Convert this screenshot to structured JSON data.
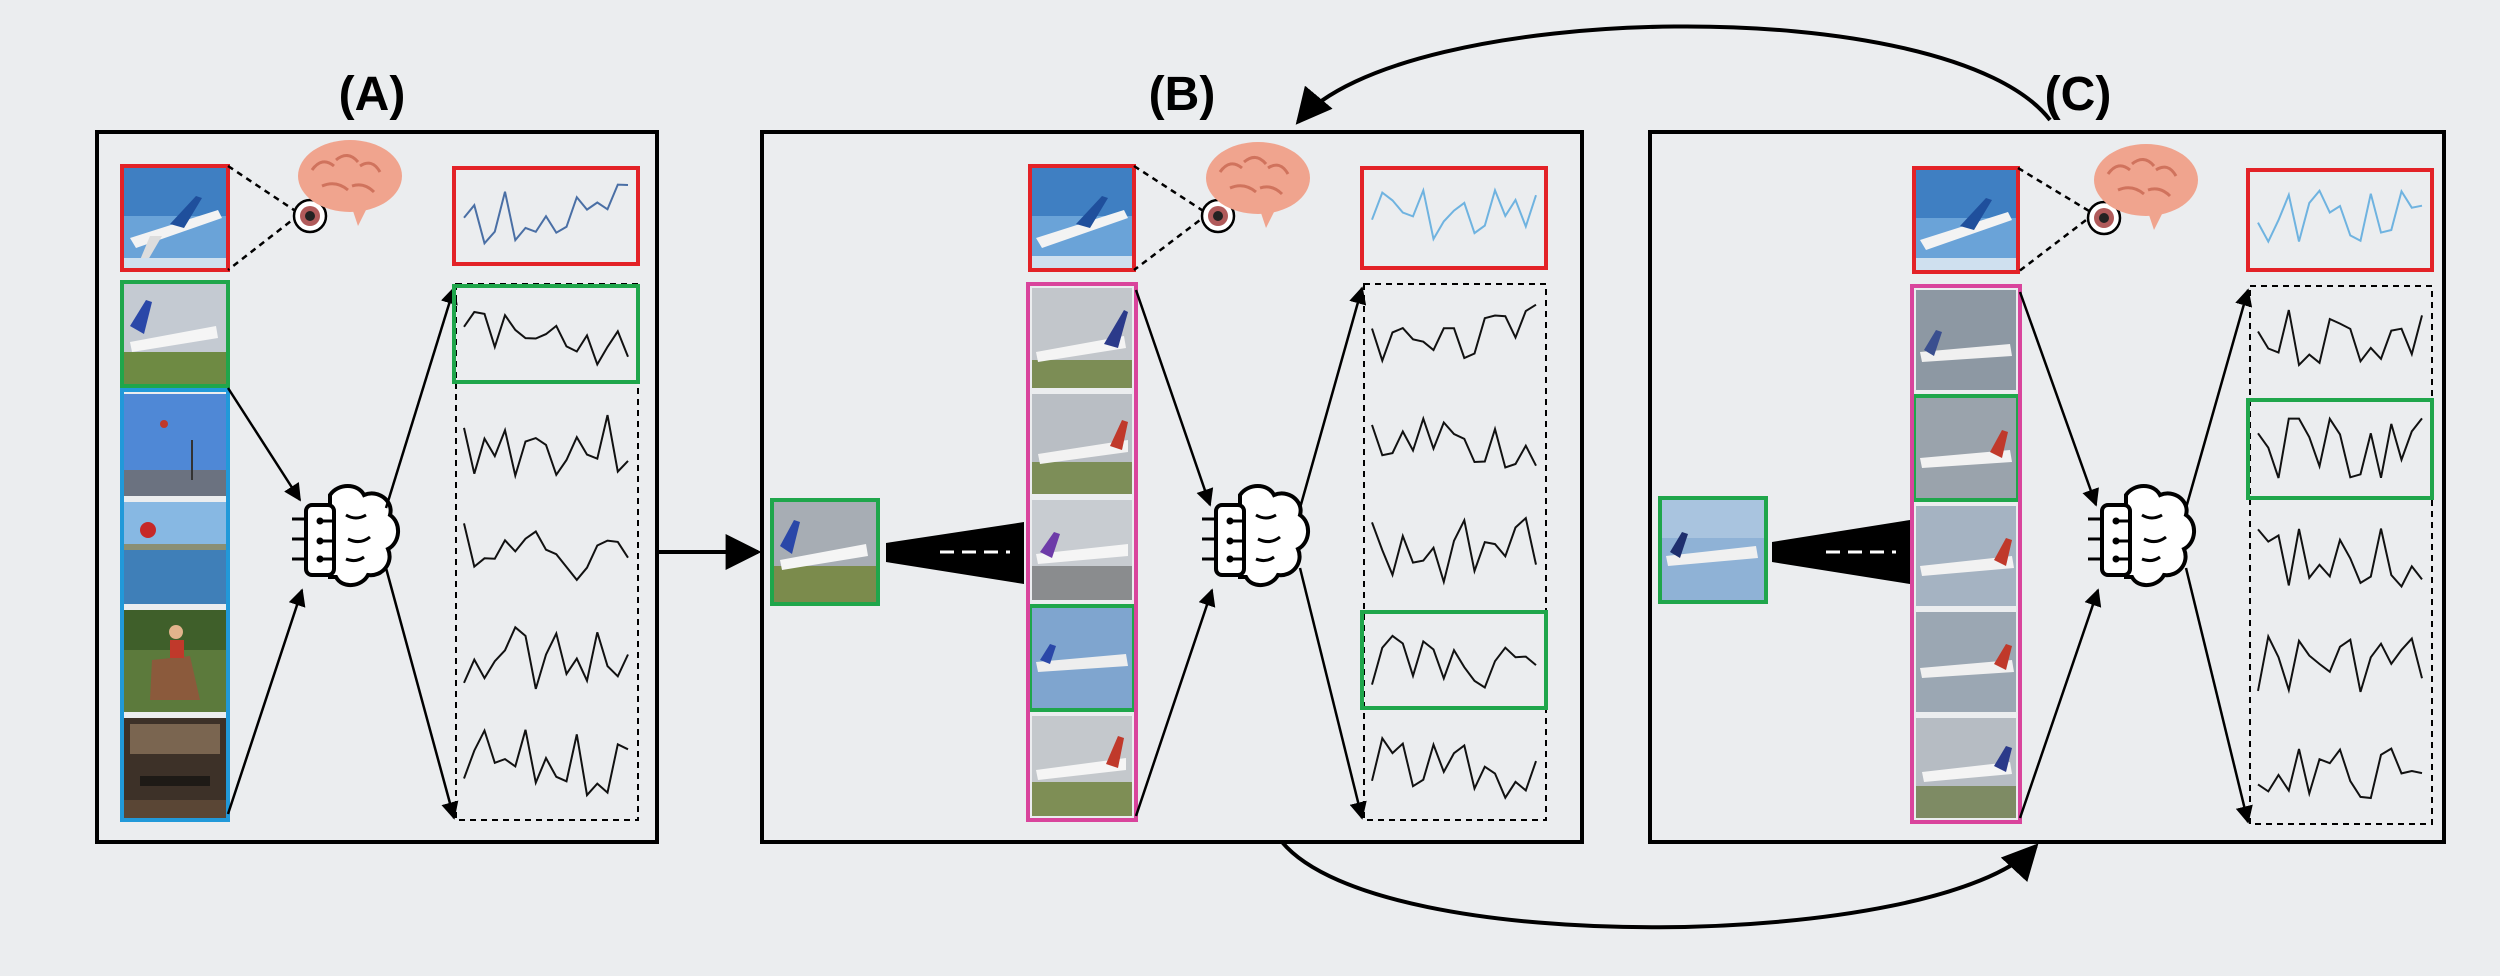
{
  "panels": [
    {
      "label": "(A)"
    },
    {
      "label": "(B)"
    },
    {
      "label": "(C)"
    }
  ],
  "colors": {
    "background": "#ebedef",
    "query": "#e32227",
    "match": "#1fa64b",
    "non_match_A": "#2199d9",
    "candidates_BC": "#d9449c",
    "brain": "#f0a48e",
    "signal_query_A": "#4a6fa5",
    "signal_query_BC": "#6fb3e0",
    "signal": "#111111"
  },
  "icons": [
    "human-brain-icon",
    "eye-icon",
    "ai-brain-chip-icon",
    "cnn-encoder-icon"
  ],
  "thumbnails": {
    "A": [
      "airplane-query",
      "airplane-takeoff",
      "sky-pole",
      "sea-stop-sign",
      "horse-rider",
      "dark-room"
    ],
    "B": [
      "airplane-query",
      "airplane-runway-1",
      "airplane-runway-2",
      "airplane-runway-3",
      "airplane-in-flight",
      "airplane-runway-4"
    ],
    "C": [
      "airplane-query",
      "airplane-cloudy-1",
      "airplane-cloudy-2",
      "airplane-cloudy-3",
      "airplane-cloudy-4",
      "airplane-runway"
    ]
  }
}
